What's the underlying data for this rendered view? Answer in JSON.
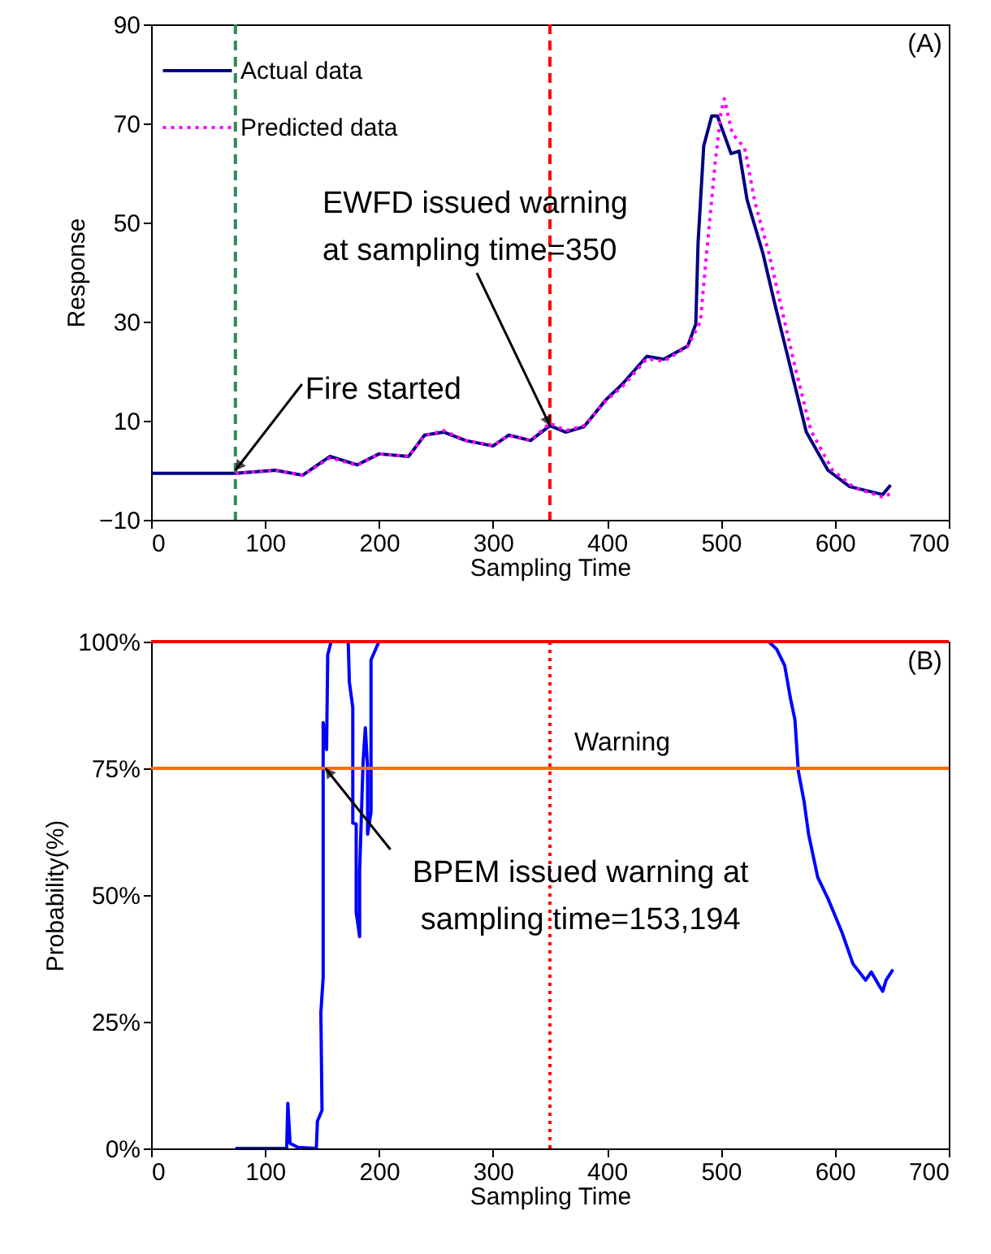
{
  "chart_data": [
    {
      "type": "line",
      "xlabel": "Sampling Time",
      "ylabel": "Response",
      "xlim": [
        0,
        700
      ],
      "ylim": [
        -10,
        90
      ],
      "xticks": [
        0,
        100,
        200,
        300,
        400,
        500,
        600,
        700
      ],
      "yticks": [
        -10,
        10,
        30,
        50,
        70,
        90
      ],
      "legend": "top left",
      "series": [
        {
          "name": "Actual data",
          "color": "#000080",
          "line_style": "solid",
          "x": [
            0,
            74,
            109,
            133,
            157,
            181,
            200,
            226,
            240,
            257,
            276,
            300,
            314,
            333,
            350,
            364,
            380,
            399,
            414,
            435,
            450,
            471,
            478,
            480,
            485,
            492,
            497,
            509,
            516,
            523,
            537,
            547,
            561,
            575,
            594,
            613,
            642,
            649
          ],
          "values": [
            -0.6,
            -0.6,
            0,
            -1,
            2.8,
            1.1,
            3.3,
            2.8,
            7.1,
            7.7,
            6,
            4.9,
            7.1,
            6,
            9,
            7.7,
            8.8,
            14.2,
            17.5,
            23,
            22.4,
            25.1,
            29.5,
            45.9,
            65.5,
            71.5,
            71.5,
            63.9,
            64.4,
            54.6,
            43.7,
            33.9,
            20.8,
            7.7,
            0,
            -3.3,
            -4.9,
            -3
          ]
        },
        {
          "name": "Predicted data",
          "color": "#ff00ff",
          "line_style": "dotted",
          "x": [
            74,
            109,
            133,
            157,
            181,
            200,
            226,
            240,
            257,
            276,
            300,
            314,
            333,
            350,
            364,
            380,
            399,
            414,
            435,
            450,
            471,
            482,
            488,
            495,
            500,
            503,
            510,
            521,
            530,
            542,
            552,
            565,
            579,
            598,
            617,
            643,
            650
          ],
          "values": [
            -0.6,
            0,
            -1,
            2.5,
            1,
            3.3,
            2.8,
            7,
            8,
            6,
            5,
            7,
            6,
            9.5,
            8,
            9,
            14,
            17,
            22.5,
            22,
            25,
            30,
            45,
            62,
            72,
            75,
            68,
            65,
            54,
            44,
            34,
            21,
            8,
            0,
            -3.5,
            -5.5,
            -4.5
          ]
        }
      ],
      "ref_lines": [
        {
          "axis": "x",
          "value": 74,
          "color": "#2e8b57",
          "line_style": "dashed"
        },
        {
          "axis": "x",
          "value": 350,
          "color": "#ff0000",
          "line_style": "dashed"
        }
      ],
      "annotations": [
        "(A)",
        {
          "text": "Fire started",
          "x": 74,
          "y": 0
        },
        {
          "text": "EWFD issued warning at sampling time=350",
          "x": 350,
          "y": 9
        }
      ]
    },
    {
      "type": "line",
      "xlabel": "Sampling Time",
      "ylabel": "Probability(%)",
      "xlim": [
        0,
        700
      ],
      "ylim": [
        0,
        100
      ],
      "xticks": [
        0,
        100,
        200,
        300,
        400,
        500,
        600,
        700
      ],
      "yticks": [
        {
          "value": 0,
          "label": "0%"
        },
        {
          "value": 25,
          "label": "25%"
        },
        {
          "value": 50,
          "label": "50%"
        },
        {
          "value": 75,
          "label": "75%"
        },
        {
          "value": 100,
          "label": "100%"
        }
      ],
      "series": [
        {
          "color": "#0000ff",
          "x": [
            74,
            119,
            120,
            122,
            129,
            145,
            146,
            150,
            149,
            151,
            151,
            154,
            155,
            158,
            173,
            174,
            177,
            177,
            180,
            180,
            183,
            183,
            186,
            188,
            190,
            190,
            193,
            193,
            200,
            542,
            549,
            556,
            561,
            565,
            568,
            573,
            577,
            585,
            594,
            599,
            606,
            616,
            627,
            632,
            639,
            642,
            645,
            651
          ],
          "values": [
            0,
            0,
            8.9,
            1,
            0.2,
            0,
            5.4,
            7.5,
            26.8,
            33.7,
            84,
            78.7,
            97.4,
            100,
            100,
            92,
            87,
            64.2,
            64,
            46.6,
            41.8,
            54.6,
            76,
            83,
            75,
            62,
            66.4,
            96.4,
            100,
            100,
            98.5,
            95.3,
            88.9,
            84.6,
            74.4,
            68.5,
            62,
            53.5,
            49.3,
            46.6,
            42.8,
            36.4,
            33.2,
            34.8,
            32.1,
            31,
            33.2,
            35.3
          ]
        }
      ],
      "ref_lines": [
        {
          "axis": "y",
          "value": 100,
          "color": "#ff0000",
          "line_style": "solid"
        },
        {
          "axis": "y",
          "value": 75,
          "color": "#ff6a00",
          "line_style": "solid",
          "label": "Warning"
        },
        {
          "axis": "x",
          "value": 350,
          "color": "#ff0000",
          "line_style": "dotted"
        }
      ],
      "annotations": [
        "(B)",
        {
          "text": "BPEM issued warning at sampling time=153,194",
          "x": 153,
          "y": 75
        }
      ]
    }
  ]
}
